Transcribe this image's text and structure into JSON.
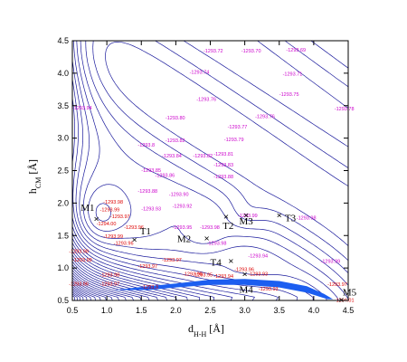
{
  "chart_data": {
    "type": "contour",
    "xlabel": "d",
    "xlabel_sub": "H-H",
    "xlabel_unit": " [Å]",
    "ylabel": "h",
    "ylabel_sub": "CM",
    "ylabel_unit": " [Å]",
    "xlim": [
      0.5,
      4.5
    ],
    "ylim": [
      0.5,
      4.5
    ],
    "xticks": [
      "0.5",
      "1.0",
      "1.5",
      "2.0",
      "2.5",
      "3.0",
      "3.5",
      "4.0",
      "4.5"
    ],
    "yticks": [
      "0.5",
      "1.0",
      "1.5",
      "2.0",
      "2.5",
      "3.0",
      "3.5",
      "4.0",
      "4.5"
    ],
    "line_color": "#1a1a9c",
    "fill_color": "#1c5ef0",
    "label_colors": {
      "magenta": "#cc00cc",
      "red": "#dd0000"
    },
    "contour_labels": [
      {
        "text": "-1293.72",
        "x": 2.4,
        "y": 4.32,
        "c": "magenta"
      },
      {
        "text": "-1293.70",
        "x": 2.95,
        "y": 4.32,
        "c": "magenta"
      },
      {
        "text": "-1293.69",
        "x": 3.6,
        "y": 4.33,
        "c": "magenta"
      },
      {
        "text": "-1293.74",
        "x": 2.2,
        "y": 3.99,
        "c": "magenta"
      },
      {
        "text": "-1293.71",
        "x": 3.55,
        "y": 3.96,
        "c": "magenta"
      },
      {
        "text": "-1293.76",
        "x": 2.3,
        "y": 3.57,
        "c": "magenta"
      },
      {
        "text": "-1293.75",
        "x": 3.5,
        "y": 3.65,
        "c": "magenta"
      },
      {
        "text": "-1293.94",
        "x": 0.5,
        "y": 3.44,
        "c": "magenta"
      },
      {
        "text": "-1293.78",
        "x": 4.3,
        "y": 3.43,
        "c": "magenta"
      },
      {
        "text": "-1293.80",
        "x": 1.85,
        "y": 3.29,
        "c": "magenta"
      },
      {
        "text": "-1293.76",
        "x": 3.15,
        "y": 3.31,
        "c": "magenta"
      },
      {
        "text": "-1293.77",
        "x": 2.75,
        "y": 3.15,
        "c": "magenta"
      },
      {
        "text": "-1293.82",
        "x": 1.85,
        "y": 2.94,
        "c": "magenta"
      },
      {
        "text": "-1293.79",
        "x": 2.7,
        "y": 2.95,
        "c": "magenta"
      },
      {
        "text": "-1293.8",
        "x": 1.45,
        "y": 2.87,
        "c": "magenta"
      },
      {
        "text": "-1293.81",
        "x": 2.55,
        "y": 2.73,
        "c": "magenta"
      },
      {
        "text": "-1293.84",
        "x": 1.8,
        "y": 2.7,
        "c": "magenta"
      },
      {
        "text": "-1293.82",
        "x": 2.25,
        "y": 2.7,
        "c": "magenta"
      },
      {
        "text": "-1293.83",
        "x": 2.55,
        "y": 2.56,
        "c": "magenta"
      },
      {
        "text": "-1293.85",
        "x": 1.5,
        "y": 2.48,
        "c": "magenta"
      },
      {
        "text": "-1293.86",
        "x": 1.7,
        "y": 2.4,
        "c": "magenta"
      },
      {
        "text": "-1293.88",
        "x": 2.55,
        "y": 2.38,
        "c": "magenta"
      },
      {
        "text": "-1293.88",
        "x": 1.45,
        "y": 2.16,
        "c": "magenta"
      },
      {
        "text": "-1293.90",
        "x": 1.9,
        "y": 2.11,
        "c": "magenta"
      },
      {
        "text": "-1293.98",
        "x": 0.95,
        "y": 1.99,
        "c": "red"
      },
      {
        "text": "-1293.92",
        "x": 1.95,
        "y": 1.93,
        "c": "magenta"
      },
      {
        "text": "-1293.93",
        "x": 1.5,
        "y": 1.89,
        "c": "magenta"
      },
      {
        "text": "-1293.99",
        "x": 0.9,
        "y": 1.87,
        "c": "red"
      },
      {
        "text": "-1293.97",
        "x": 1.05,
        "y": 1.77,
        "c": "red"
      },
      {
        "text": "-1293.99",
        "x": 2.9,
        "y": 1.78,
        "c": "magenta"
      },
      {
        "text": "-1293.98",
        "x": 3.75,
        "y": 1.75,
        "c": "magenta"
      },
      {
        "text": "-1294.00",
        "x": 0.85,
        "y": 1.66,
        "c": "red"
      },
      {
        "text": "-1293.96",
        "x": 1.25,
        "y": 1.6,
        "c": "red"
      },
      {
        "text": "-1293.95",
        "x": 1.95,
        "y": 1.6,
        "c": "magenta"
      },
      {
        "text": "-1293.98",
        "x": 2.35,
        "y": 1.6,
        "c": "magenta"
      },
      {
        "text": "-1293.99",
        "x": 0.95,
        "y": 1.46,
        "c": "red"
      },
      {
        "text": "-1293.98",
        "x": 2.45,
        "y": 1.36,
        "c": "magenta"
      },
      {
        "text": "-1293.96",
        "x": 1.1,
        "y": 1.36,
        "c": "red"
      },
      {
        "text": "-1293.98",
        "x": 0.45,
        "y": 1.23,
        "c": "red"
      },
      {
        "text": "-1293.99",
        "x": 0.5,
        "y": 1.1,
        "c": "red"
      },
      {
        "text": "-1293.97",
        "x": 1.8,
        "y": 1.1,
        "c": "red"
      },
      {
        "text": "-1293.94",
        "x": 3.05,
        "y": 1.16,
        "c": "magenta"
      },
      {
        "text": "-1293.99",
        "x": 4.1,
        "y": 1.08,
        "c": "magenta"
      },
      {
        "text": "-1293.97",
        "x": 1.45,
        "y": 1.0,
        "c": "red"
      },
      {
        "text": "-1293.96",
        "x": 2.85,
        "y": 0.95,
        "c": "red"
      },
      {
        "text": "-1293.98",
        "x": 0.9,
        "y": 0.87,
        "c": "red"
      },
      {
        "text": "-1293.98",
        "x": 2.1,
        "y": 0.88,
        "c": "red"
      },
      {
        "text": "-1293.95",
        "x": 2.25,
        "y": 0.87,
        "c": "red"
      },
      {
        "text": "-1293.94",
        "x": 2.55,
        "y": 0.85,
        "c": "red"
      },
      {
        "text": "-1293.93",
        "x": 3.05,
        "y": 0.88,
        "c": "red"
      },
      {
        "text": "-1293.96",
        "x": 0.45,
        "y": 0.73,
        "c": "red"
      },
      {
        "text": "-1293.97",
        "x": 0.9,
        "y": 0.73,
        "c": "red"
      },
      {
        "text": "-1293.3",
        "x": 1.5,
        "y": 0.68,
        "c": "red"
      },
      {
        "text": "-1293.93",
        "x": 3.2,
        "y": 0.65,
        "c": "red"
      },
      {
        "text": "-1293.97",
        "x": 4.2,
        "y": 0.72,
        "c": "red"
      },
      {
        "text": "-1294.01",
        "x": 4.3,
        "y": 0.48,
        "c": "red"
      }
    ],
    "points": [
      {
        "name": "M1",
        "x": 0.85,
        "y": 1.75,
        "lx": 0.62,
        "ly": 1.88
      },
      {
        "name": "T1",
        "x": 1.4,
        "y": 1.43,
        "lx": 1.48,
        "ly": 1.52
      },
      {
        "name": "M2",
        "x": 2.45,
        "y": 1.45,
        "lx": 2.02,
        "ly": 1.4
      },
      {
        "name": "T2",
        "x": 2.73,
        "y": 1.78,
        "lx": 2.68,
        "ly": 1.6
      },
      {
        "name": "M3",
        "x": 3.02,
        "y": 1.8,
        "lx": 2.92,
        "ly": 1.67
      },
      {
        "name": "T3",
        "x": 3.5,
        "y": 1.8,
        "lx": 3.58,
        "ly": 1.72
      },
      {
        "name": "T4",
        "x": 2.8,
        "y": 1.1,
        "lx": 2.5,
        "ly": 1.04
      },
      {
        "name": "M4",
        "x": 3.0,
        "y": 0.9,
        "lx": 2.92,
        "ly": 0.62
      },
      {
        "name": "M5",
        "x": 4.4,
        "y": 0.5,
        "lx": 4.42,
        "ly": 0.58
      }
    ]
  }
}
